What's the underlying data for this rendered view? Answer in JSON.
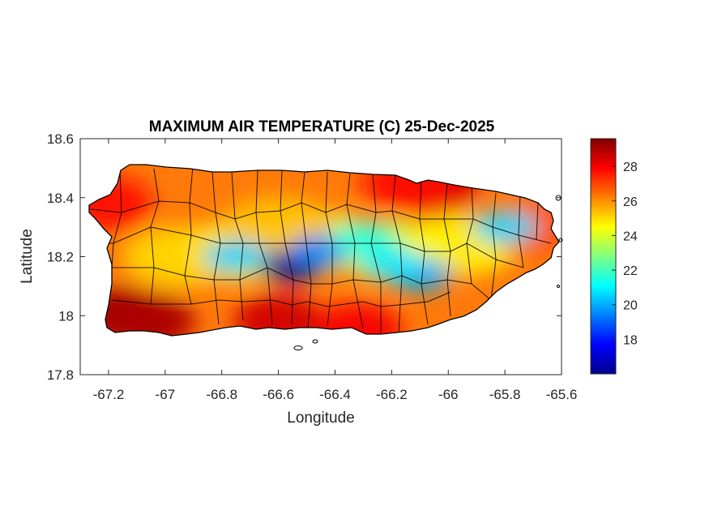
{
  "chart_data": {
    "type": "heatmap",
    "title": "MAXIMUM AIR TEMPERATURE (C) 25-Dec-2025",
    "xlabel": "Longitude",
    "ylabel": "Latitude",
    "xlim": [
      -67.3,
      -65.6
    ],
    "ylim": [
      17.8,
      18.6
    ],
    "xticks": [
      -67.2,
      -67,
      -66.8,
      -66.6,
      -66.4,
      -66.2,
      -66,
      -65.8,
      -65.6
    ],
    "xtick_labels": [
      "-67.2",
      "-67",
      "-66.8",
      "-66.6",
      "-66.4",
      "-66.2",
      "-66",
      "-65.8",
      "-65.6"
    ],
    "yticks": [
      17.8,
      18,
      18.2,
      18.4,
      18.6
    ],
    "ytick_labels": [
      "17.8",
      "18",
      "18.2",
      "18.4",
      "18.6"
    ],
    "colormap": "jet",
    "colorbar": {
      "range": [
        16,
        29.6
      ],
      "ticks": [
        18,
        20,
        22,
        24,
        26,
        28
      ],
      "tick_labels": [
        "18",
        "20",
        "22",
        "24",
        "26",
        "28"
      ]
    },
    "grid": false,
    "hot_spots": [
      {
        "lon": -67.15,
        "lat": 18.0,
        "value": 29.3
      },
      {
        "lon": -67.05,
        "lat": 17.98,
        "value": 29.0
      },
      {
        "lon": -66.6,
        "lat": 17.98,
        "value": 28.5
      },
      {
        "lon": -66.32,
        "lat": 17.95,
        "value": 28.0
      },
      {
        "lon": -66.05,
        "lat": 18.43,
        "value": 28.3
      },
      {
        "lon": -66.15,
        "lat": 18.45,
        "value": 27.8
      },
      {
        "lon": -67.2,
        "lat": 18.38,
        "value": 27.8
      },
      {
        "lon": -65.7,
        "lat": 18.3,
        "value": 26.8
      }
    ],
    "cool_spots": [
      {
        "lon": -66.55,
        "lat": 18.17,
        "value": 16.3
      },
      {
        "lon": -66.45,
        "lat": 18.22,
        "value": 19.5
      },
      {
        "lon": -66.75,
        "lat": 18.2,
        "value": 20.5
      },
      {
        "lon": -66.1,
        "lat": 18.14,
        "value": 20.0
      },
      {
        "lon": -66.2,
        "lat": 18.18,
        "value": 20.8
      },
      {
        "lon": -65.8,
        "lat": 18.3,
        "value": 20.6
      },
      {
        "lon": -66.3,
        "lat": 18.26,
        "value": 21.5
      }
    ]
  },
  "colors": {
    "frame": "#262626",
    "background": "#ffffff",
    "borders": "#000000"
  }
}
